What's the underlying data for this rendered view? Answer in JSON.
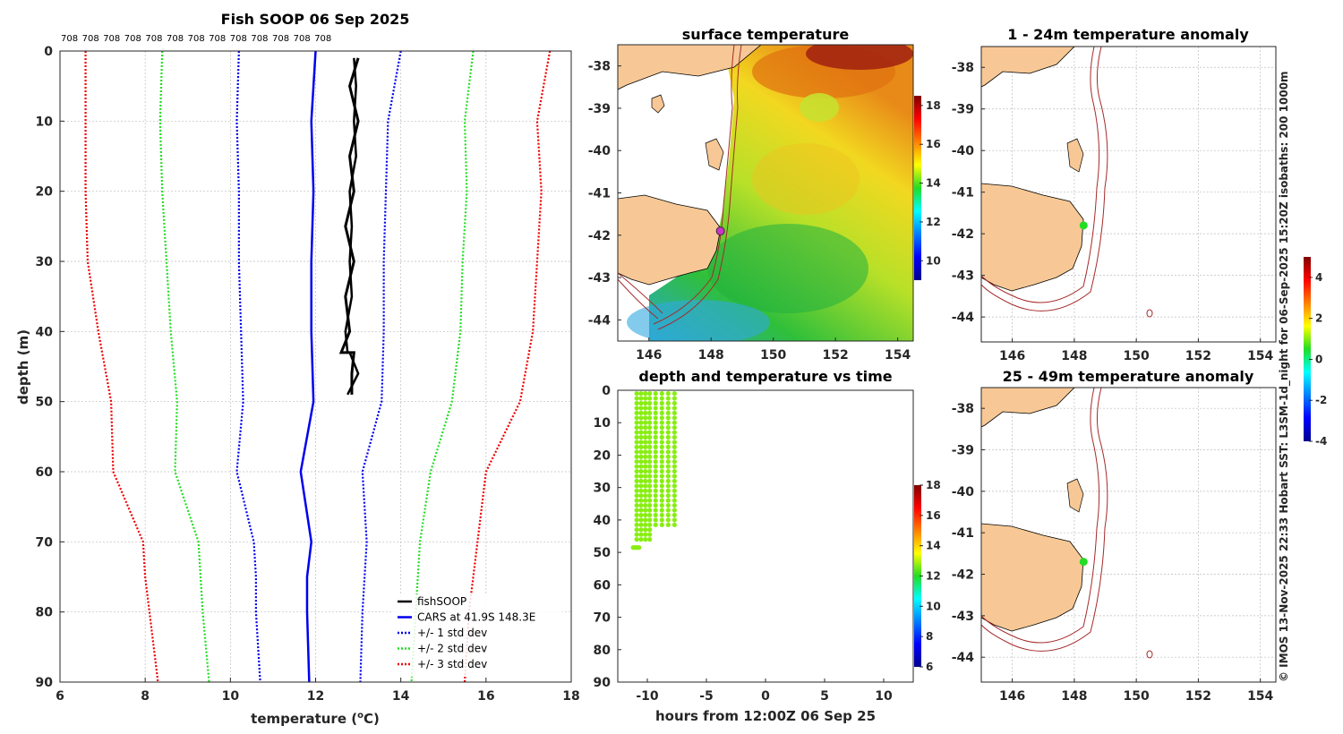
{
  "chart_data": [
    {
      "type": "line",
      "id": "profile",
      "title": "Fish SOOP 06 Sep 2025",
      "xlabel": "temperature (",
      "xlabel_sup": "o",
      "xlabel_end": "C)",
      "ylabel": "depth (m)",
      "xlim": [
        6,
        18
      ],
      "ylim": [
        0,
        90
      ],
      "xticks": [
        "6",
        "8",
        "10",
        "12",
        "14",
        "16",
        "18"
      ],
      "yticks": [
        "0",
        "10",
        "20",
        "30",
        "40",
        "50",
        "60",
        "70",
        "80",
        "90"
      ],
      "top_labels": [
        "708",
        "708",
        "708",
        "708",
        "708",
        "708",
        "708",
        "708",
        "708",
        "708",
        "708",
        "708",
        "708"
      ],
      "depth": [
        0,
        10,
        20,
        30,
        40,
        50,
        60,
        70,
        75,
        80,
        90
      ],
      "series": [
        {
          "name": "fishSOOP",
          "color": "#000000",
          "style": "solid",
          "points": [
            [
              13.0,
              1
            ],
            [
              12.8,
              5
            ],
            [
              13.0,
              10
            ],
            [
              12.8,
              15
            ],
            [
              12.9,
              20
            ],
            [
              12.7,
              25
            ],
            [
              12.9,
              30
            ],
            [
              12.7,
              35
            ],
            [
              12.8,
              40
            ],
            [
              12.6,
              43
            ],
            [
              12.9,
              43
            ],
            [
              12.85,
              46
            ],
            [
              12.85,
              49
            ]
          ]
        },
        {
          "name": "CARS at 41.9S 148.3E",
          "color": "#0000ee",
          "style": "solid",
          "values": [
            12.0,
            11.9,
            11.95,
            11.9,
            11.9,
            11.95,
            11.65,
            11.9,
            11.8,
            11.8,
            11.85
          ]
        },
        {
          "name": "+/- 1 std dev",
          "color": "#0000ee",
          "style": "dotted",
          "values_low": [
            10.2,
            10.15,
            10.2,
            10.2,
            10.25,
            10.3,
            10.15,
            10.55,
            10.6,
            10.6,
            10.7
          ],
          "values_high": [
            14.0,
            13.7,
            13.65,
            13.6,
            13.6,
            13.55,
            13.1,
            13.2,
            13.15,
            13.1,
            13.05
          ]
        },
        {
          "name": "+/- 2 std dev",
          "color": "#22dd22",
          "style": "dotted",
          "values_low": [
            8.4,
            8.35,
            8.4,
            8.5,
            8.6,
            8.75,
            8.7,
            9.25,
            9.3,
            9.35,
            9.5
          ],
          "values_high": [
            15.7,
            15.5,
            15.55,
            15.45,
            15.4,
            15.2,
            14.7,
            14.45,
            14.4,
            14.35,
            14.25
          ]
        },
        {
          "name": "+/- 3 std dev",
          "color": "#ee0000",
          "style": "dotted",
          "values_low": [
            6.6,
            6.6,
            6.6,
            6.65,
            6.9,
            7.2,
            7.25,
            7.95,
            8.0,
            8.1,
            8.3
          ],
          "values_high": [
            17.5,
            17.2,
            17.3,
            17.2,
            17.1,
            16.8,
            16.0,
            15.8,
            15.7,
            15.6,
            15.5
          ]
        }
      ],
      "legend": [
        "fishSOOP",
        "CARS at 41.9S 148.3E",
        "+/- 1 std dev",
        "+/- 2 std dev",
        "+/- 3 std dev"
      ]
    },
    {
      "type": "heatmap",
      "id": "sst",
      "title": "surface temperature",
      "xlim": [
        145,
        154.5
      ],
      "ylim": [
        -44.5,
        -37.5
      ],
      "xticks": [
        146,
        148,
        150,
        152,
        154
      ],
      "yticks": [
        -38,
        -39,
        -40,
        -41,
        -42,
        -43,
        -44
      ],
      "colorbar": {
        "min": 9,
        "max": 18.5,
        "ticks": [
          10,
          12,
          14,
          16,
          18
        ]
      },
      "vessel_position": [
        148.3,
        -41.9
      ]
    },
    {
      "type": "scatter",
      "id": "timeseries",
      "title": "depth and temperature vs time",
      "xlabel": "hours from 12:00Z 06 Sep 25",
      "xlim": [
        -12.5,
        12.5
      ],
      "ylim": [
        0,
        90
      ],
      "xticks": [
        -10,
        -5,
        0,
        5,
        10
      ],
      "xtick_labels": [
        "-10",
        "-5",
        "0",
        "5",
        "10"
      ],
      "yticks": [
        "0",
        "10",
        "20",
        "30",
        "40",
        "50",
        "60",
        "70",
        "80",
        "90"
      ],
      "point_color": "#88ee11",
      "colorbar": {
        "min": 6,
        "max": 18,
        "ticks": [
          6,
          8,
          10,
          12,
          14,
          16,
          18
        ]
      }
    },
    {
      "type": "heatmap",
      "id": "anom1",
      "title": "1 - 24m temperature anomaly",
      "xlim": [
        145,
        154.5
      ],
      "ylim": [
        -44.6,
        -37.5
      ],
      "xticks": [
        146,
        148,
        150,
        152,
        154
      ],
      "yticks": [
        -38,
        -39,
        -40,
        -41,
        -42,
        -43,
        -44
      ],
      "marker": [
        148.3,
        -41.8
      ],
      "marker_color": "#22dd22"
    },
    {
      "type": "heatmap",
      "id": "anom2",
      "title": "25 - 49m temperature anomaly",
      "xlim": [
        145,
        154.5
      ],
      "ylim": [
        -44.6,
        -37.5
      ],
      "xticks": [
        146,
        148,
        150,
        152,
        154
      ],
      "yticks": [
        -38,
        -39,
        -40,
        -41,
        -42,
        -43,
        -44
      ],
      "marker": [
        148.3,
        -41.7
      ],
      "marker_color": "#22dd22",
      "colorbar": {
        "min": -4,
        "max": 5,
        "ticks": [
          -4,
          -2,
          0,
          2,
          4
        ]
      }
    }
  ],
  "side_note": "© IMOS 13-Nov-2025 22:33 Hobart SST: L3SM-1d_night for 06-Sep-2025 15:20Z isobaths: 200  1000m"
}
